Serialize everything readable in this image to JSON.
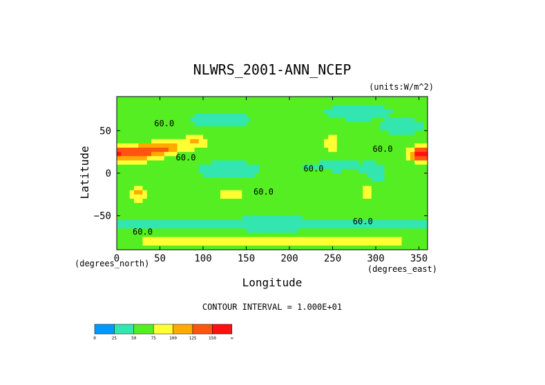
{
  "chart_data": {
    "type": "heatmap",
    "title": "NLWRS_2001-ANN_NCEP",
    "units": "(units:W/m^2)",
    "xlabel": "Longitude",
    "ylabel": "Latitude",
    "x_unit_note": "(degrees_east)",
    "y_unit_note": "(degrees_north)",
    "xlim": [
      0,
      360
    ],
    "ylim": [
      -90,
      90
    ],
    "x_ticks": [
      0,
      50,
      100,
      150,
      200,
      250,
      300,
      350
    ],
    "y_ticks": [
      -50,
      0,
      50
    ],
    "x_tick_labels": [
      "0",
      "50",
      "100",
      "150",
      "200",
      "250",
      "300",
      "350"
    ],
    "y_tick_labels": [
      "−50",
      "0",
      "50"
    ],
    "contour_interval_text": "CONTOUR INTERVAL = 1.000E+01",
    "contour_labels": [
      {
        "text": "60.0",
        "lon": 55,
        "lat": 55
      },
      {
        "text": "60.0",
        "lon": 80,
        "lat": 15
      },
      {
        "text": "60.0",
        "lon": 170,
        "lat": -25
      },
      {
        "text": "60.0",
        "lon": 228,
        "lat": 2
      },
      {
        "text": "60.0",
        "lon": 308,
        "lat": 25
      },
      {
        "text": "60.0",
        "lon": 285,
        "lat": -60
      },
      {
        "text": "60.0",
        "lon": 30,
        "lat": -72
      }
    ],
    "colorbar": {
      "levels": [
        "0",
        "25",
        "50",
        "75",
        "100",
        "125",
        "150",
        "∞"
      ],
      "colors": [
        "#0099ff",
        "#33e6b0",
        "#55ee22",
        "#ffff33",
        "#ffaa00",
        "#ff5511",
        "#ff1111"
      ]
    },
    "field": {
      "base_value": 55,
      "features": [
        {
          "name": "north-africa-arabia",
          "lon": 22,
          "lat": 24,
          "rlon": 28,
          "rlat": 10,
          "value": 145
        },
        {
          "name": "middle-east",
          "lon": 58,
          "lat": 30,
          "rlon": 18,
          "rlat": 8,
          "value": 120
        },
        {
          "name": "tibet",
          "lon": 90,
          "lat": 36,
          "rlon": 16,
          "rlat": 8,
          "value": 105
        },
        {
          "name": "sahara-west",
          "lon": 352,
          "lat": 22,
          "rlon": 12,
          "rlat": 9,
          "value": 145
        },
        {
          "name": "south-africa",
          "lon": 25,
          "lat": -24,
          "rlon": 9,
          "rlat": 10,
          "value": 105
        },
        {
          "name": "australia",
          "lon": 134,
          "lat": -25,
          "rlon": 16,
          "rlat": 9,
          "value": 95
        },
        {
          "name": "southwest-us",
          "lon": 248,
          "lat": 35,
          "rlon": 9,
          "rlat": 11,
          "value": 100
        },
        {
          "name": "andes",
          "lon": 290,
          "lat": -22,
          "rlon": 4,
          "rlat": 14,
          "value": 105
        },
        {
          "name": "greenland-arctic",
          "lon": 280,
          "lat": 72,
          "rlon": 30,
          "rlat": 8,
          "value": 30
        },
        {
          "name": "siberia",
          "lon": 120,
          "lat": 62,
          "rlon": 35,
          "rlat": 8,
          "value": 40
        },
        {
          "name": "west-pacific-warm-pool",
          "lon": 130,
          "lat": 4,
          "rlon": 30,
          "rlat": 9,
          "value": 35
        },
        {
          "name": "amazon",
          "lon": 298,
          "lat": 0,
          "rlon": 12,
          "rlat": 10,
          "value": 35
        },
        {
          "name": "east-pacific-itcz",
          "lon": 255,
          "lat": 8,
          "rlon": 35,
          "rlat": 5,
          "value": 38
        },
        {
          "name": "south-ocean-belt",
          "lon": 180,
          "lat": -60,
          "rlon": 170,
          "rlat": 6,
          "value": 30
        },
        {
          "name": "antarctica-coast",
          "lon": 180,
          "lat": -80,
          "rlon": 170,
          "rlat": 5,
          "value": 110
        },
        {
          "name": "north-atlantic",
          "lon": 330,
          "lat": 55,
          "rlon": 20,
          "rlat": 8,
          "value": 35
        }
      ]
    }
  }
}
